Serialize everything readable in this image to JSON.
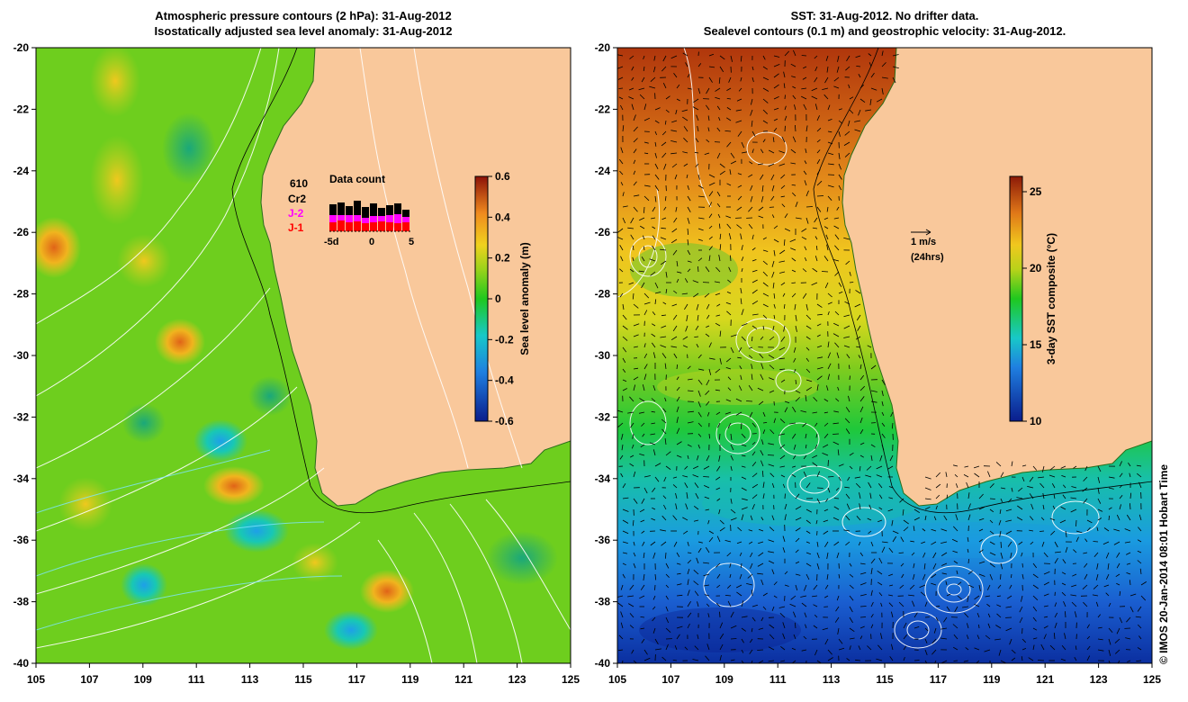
{
  "left_panel": {
    "title_line1": "Atmospheric pressure contours (2 hPa): 31-Aug-2012",
    "title_line2": "Isostatically adjusted sea level anomaly: 31-Aug-2012",
    "x_ticks": [
      "105",
      "107",
      "109",
      "111",
      "113",
      "115",
      "117",
      "119",
      "121",
      "123",
      "125"
    ],
    "y_ticks": [
      "-20",
      "-22",
      "-24",
      "-26",
      "-28",
      "-30",
      "-32",
      "-34",
      "-36",
      "-38",
      "-40"
    ],
    "colorbar": {
      "label": "Sea level anomaly (m)",
      "ticks": [
        "0.6",
        "0.4",
        "0.2",
        "0",
        "-0.2",
        "-0.4",
        "-0.6"
      ],
      "range": [
        -0.6,
        0.6
      ]
    },
    "inset": {
      "title": "Data count",
      "count": "610",
      "labels": [
        "Cr2",
        "J-2",
        "J-1"
      ],
      "label_colors": [
        "#000000",
        "#ff00ff",
        "#ff0000"
      ],
      "x_ticks": [
        "-5d",
        "0",
        "5"
      ]
    }
  },
  "right_panel": {
    "title_line1": "SST: 31-Aug-2012. No drifter data.",
    "title_line2": "Sealevel contours (0.1 m) and geostrophic velocity: 31-Aug-2012.",
    "x_ticks": [
      "105",
      "107",
      "109",
      "111",
      "113",
      "115",
      "117",
      "119",
      "121",
      "123",
      "125"
    ],
    "y_ticks": [
      "-20",
      "-22",
      "-24",
      "-26",
      "-28",
      "-30",
      "-32",
      "-34",
      "-36",
      "-38",
      "-40"
    ],
    "colorbar": {
      "label": "3-day SST composite (°C)",
      "ticks": [
        "25",
        "20",
        "15",
        "10"
      ],
      "range": [
        10,
        26
      ]
    },
    "scale_arrow": {
      "label": "1 m/s",
      "sublabel": "(24hrs)"
    }
  },
  "credit": "© IMOS 20-Jan-2014 08:01 Hobart Time",
  "colors": {
    "land": "#f9c89b",
    "sla_zero": "#22c81e",
    "sst_warm": "#b8420e",
    "sst_cold": "#0b3fa0"
  }
}
